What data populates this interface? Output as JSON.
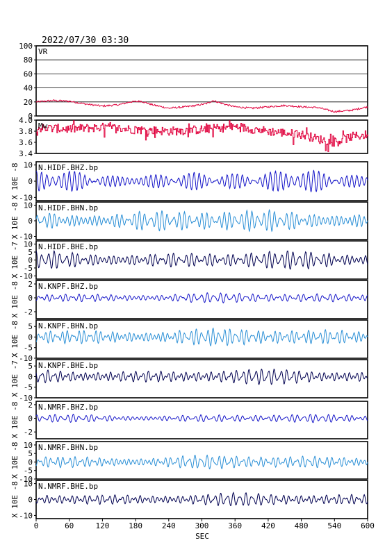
{
  "header": {
    "title": "2022/07/30 03:30"
  },
  "x_axis": {
    "label": "SEC",
    "range": [
      0,
      600
    ],
    "ticks": [
      0,
      60,
      120,
      180,
      240,
      300,
      360,
      420,
      480,
      540,
      600
    ]
  },
  "colors": {
    "vr": "#e0003c",
    "mw": "#e0003c",
    "bhz": "#1515c8",
    "bhn": "#2a8fd6",
    "bhe": "#000050",
    "axis": "#000000"
  },
  "chart_data": [
    {
      "type": "line",
      "name": "VR",
      "label": "VR",
      "ylabel": "",
      "ylim": [
        0,
        100
      ],
      "yticks": [
        0,
        20,
        40,
        60,
        80,
        100
      ],
      "grid": true,
      "profile": {
        "x": [
          0,
          30,
          60,
          90,
          120,
          150,
          170,
          190,
          210,
          240,
          270,
          290,
          310,
          320,
          340,
          360,
          390,
          420,
          450,
          480,
          510,
          540,
          570,
          600
        ],
        "y": [
          20,
          22,
          21,
          17,
          14,
          16,
          20,
          21,
          16,
          11,
          13,
          15,
          18,
          22,
          17,
          13,
          11,
          13,
          15,
          13,
          12,
          6,
          8,
          13
        ]
      }
    },
    {
      "type": "line",
      "name": "Mw",
      "label": "Mw",
      "ylabel": "",
      "ylim": [
        3.4,
        4.0
      ],
      "yticks": [
        3.4,
        3.6,
        3.8,
        4.0
      ],
      "grid": false,
      "profile": {
        "x": [
          0,
          60,
          120,
          180,
          240,
          300,
          360,
          420,
          480,
          510,
          540,
          570,
          600
        ],
        "y": [
          3.86,
          3.84,
          3.87,
          3.83,
          3.8,
          3.83,
          3.88,
          3.8,
          3.74,
          3.66,
          3.6,
          3.7,
          3.74
        ]
      }
    },
    {
      "type": "line",
      "name": "N.HIDF.BHZ.bp",
      "label": "N.HIDF.BHZ.bp",
      "ylabel": "X 10E -8",
      "color": "bhz",
      "ylim": [
        -12,
        12
      ],
      "yticks": [
        -10,
        0,
        10
      ],
      "amp": 6.5
    },
    {
      "type": "line",
      "name": "N.HIDF.BHN.bp",
      "label": "N.HIDF.BHN.bp",
      "ylabel": "X 10E -8",
      "color": "bhn",
      "ylim": [
        -12,
        12
      ],
      "yticks": [
        -10,
        0,
        10
      ],
      "amp": 7
    },
    {
      "type": "line",
      "name": "N.HIDF.BHE.bp",
      "label": "N.HIDF.BHE.bp",
      "ylabel": "X 10E -7",
      "color": "bhe",
      "ylim": [
        -12,
        12
      ],
      "yticks": [
        -10,
        -5,
        0,
        5,
        10
      ],
      "amp": 5.5
    },
    {
      "type": "line",
      "name": "N.KNPF.BHZ.bp",
      "label": "N.KNPF.BHZ.bp",
      "ylabel": "X 10E -8",
      "color": "bhz",
      "ylim": [
        -3,
        2.5
      ],
      "yticks": [
        -2,
        0,
        2
      ],
      "amp": 0.7
    },
    {
      "type": "line",
      "name": "N.KNPF.BHN.bp",
      "label": "N.KNPF.BHN.bp",
      "ylabel": "X 10E -8",
      "color": "bhn",
      "ylim": [
        -10,
        8
      ],
      "yticks": [
        -10,
        -5,
        0,
        5
      ],
      "amp": 4
    },
    {
      "type": "line",
      "name": "N.KNPF.BHE.bp",
      "label": "N.KNPF.BHE.bp",
      "ylabel": "X 10E -7",
      "color": "bhe",
      "ylim": [
        -10,
        8
      ],
      "yticks": [
        -10,
        -5,
        0,
        5
      ],
      "amp": 3.5
    },
    {
      "type": "line",
      "name": "N.NMRF.BHZ.bp",
      "label": "N.NMRF.BHZ.bp",
      "ylabel": "X 10E -8",
      "color": "bhz",
      "ylim": [
        -3,
        2.5
      ],
      "yticks": [
        -2,
        0,
        2
      ],
      "amp": 0.6
    },
    {
      "type": "line",
      "name": "N.NMRF.BHN.bp",
      "label": "N.NMRF.BHN.bp",
      "ylabel": "X 10E -8",
      "color": "bhn",
      "ylim": [
        -10,
        12
      ],
      "yticks": [
        -10,
        -5,
        0,
        5,
        10
      ],
      "amp": 4
    },
    {
      "type": "line",
      "name": "N.NMRF.BHE.bp",
      "label": "N.NMRF.BHE.bp",
      "ylabel": "X 10E -8",
      "color": "bhe",
      "ylim": [
        -12,
        12
      ],
      "yticks": [
        -10,
        0,
        10
      ],
      "amp": 4
    }
  ]
}
